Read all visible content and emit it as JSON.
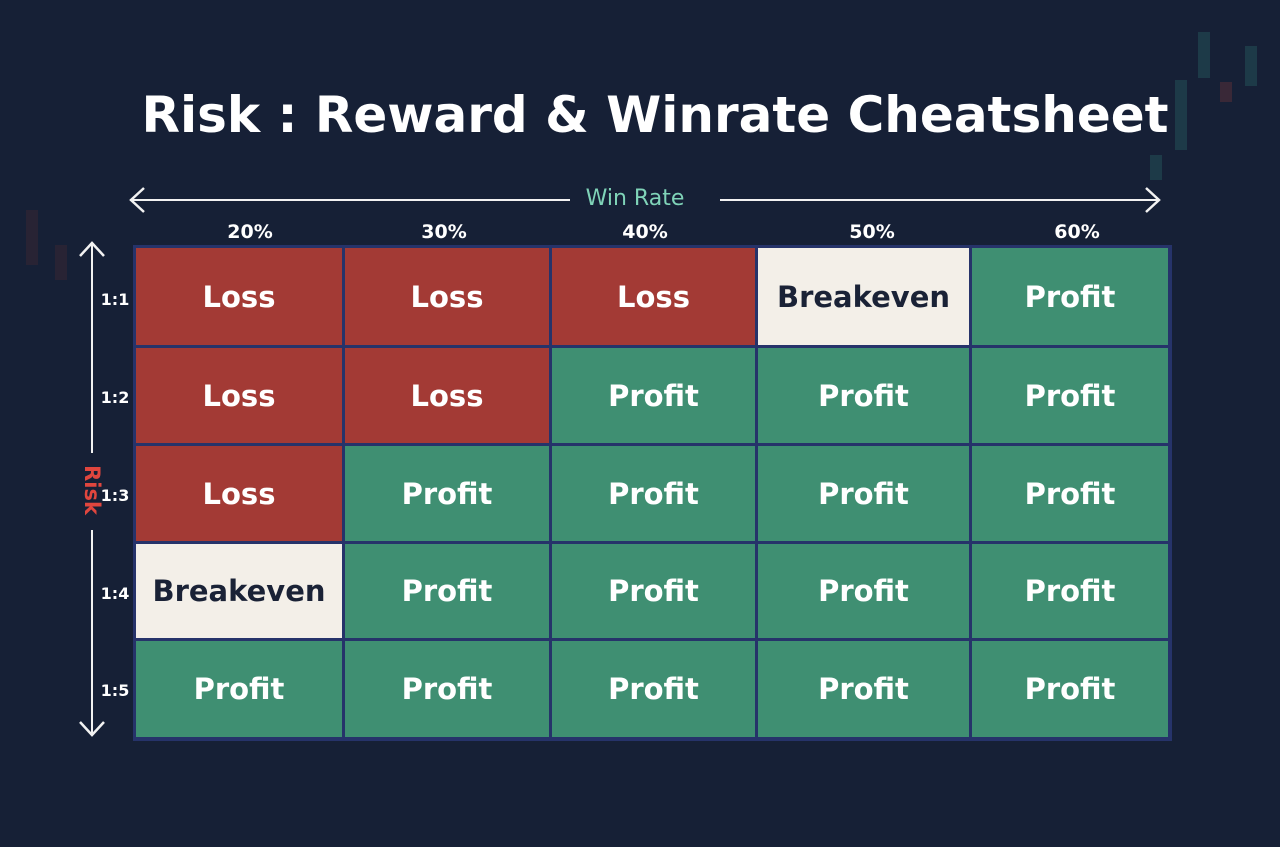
{
  "colors": {
    "background": "#162036",
    "loss": "#a33a35",
    "profit": "#3f8f72",
    "breakeven": "#f3efe8",
    "grid_border": "#26336a",
    "x_label": "#7fd3b8",
    "y_label": "#e0463e"
  },
  "chart_data": {
    "type": "table",
    "title": "Risk : Reward & Winrate Cheatsheet",
    "xlabel": "Win Rate",
    "ylabel": "Risk",
    "columns": [
      "20%",
      "30%",
      "40%",
      "50%",
      "60%"
    ],
    "rows": [
      "1:1",
      "1:2",
      "1:3",
      "1:4",
      "1:5"
    ],
    "cells": [
      [
        "Loss",
        "Loss",
        "Loss",
        "Breakeven",
        "Profit"
      ],
      [
        "Loss",
        "Loss",
        "Profit",
        "Profit",
        "Profit"
      ],
      [
        "Loss",
        "Profit",
        "Profit",
        "Profit",
        "Profit"
      ],
      [
        "Breakeven",
        "Profit",
        "Profit",
        "Profit",
        "Profit"
      ],
      [
        "Profit",
        "Profit",
        "Profit",
        "Profit",
        "Profit"
      ]
    ]
  }
}
